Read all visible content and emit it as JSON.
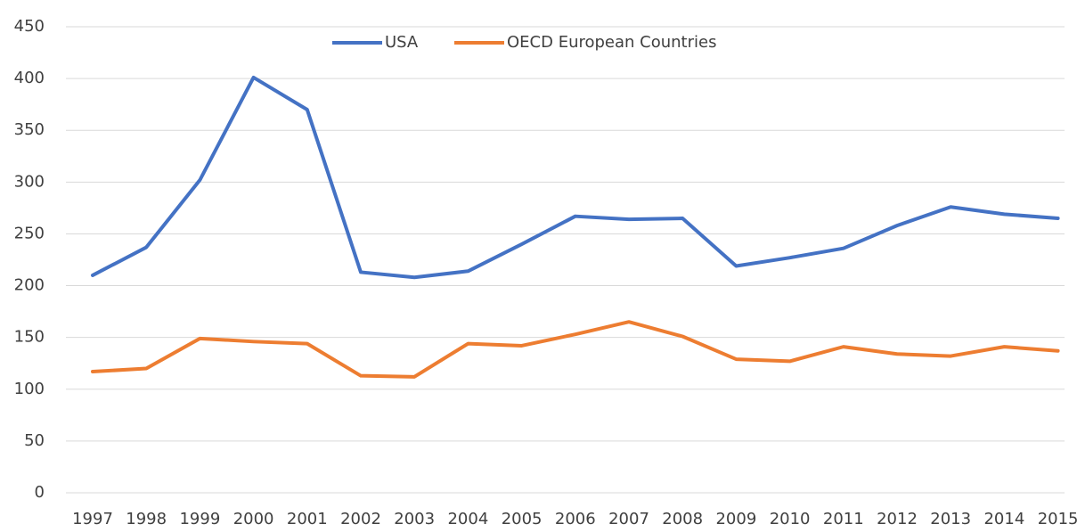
{
  "chart_data": {
    "type": "line",
    "categories": [
      "1997",
      "1998",
      "1999",
      "2000",
      "2001",
      "2002",
      "2003",
      "2004",
      "2005",
      "2006",
      "2007",
      "2008",
      "2009",
      "2010",
      "2011",
      "2012",
      "2013",
      "2014",
      "2015"
    ],
    "series": [
      {
        "name": "USA",
        "color": "#4472c4",
        "values": [
          210,
          237,
          302,
          401,
          370,
          213,
          208,
          214,
          240,
          267,
          264,
          265,
          219,
          227,
          236,
          258,
          276,
          269,
          265
        ]
      },
      {
        "name": "OECD European Countries",
        "color": "#ed7d31",
        "values": [
          117,
          120,
          149,
          146,
          144,
          113,
          112,
          144,
          142,
          153,
          165,
          151,
          129,
          127,
          141,
          134,
          132,
          141,
          137
        ]
      }
    ],
    "ylim": [
      0,
      450
    ],
    "yticks": [
      0,
      50,
      100,
      150,
      200,
      250,
      300,
      350,
      400,
      450
    ],
    "grid": true,
    "legend": "top"
  }
}
